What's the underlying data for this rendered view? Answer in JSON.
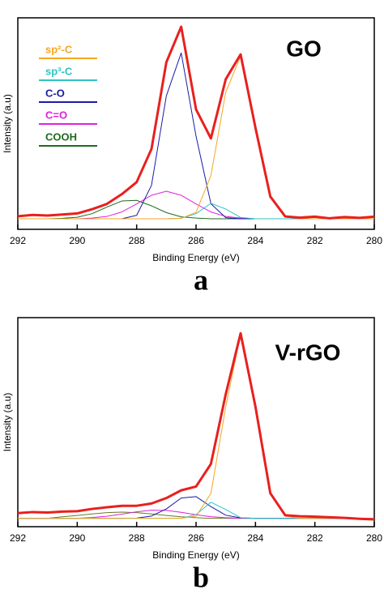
{
  "chart_data": [
    {
      "type": "line",
      "annotation": "GO",
      "panel": "a",
      "x_label": "Binding Energy (eV)",
      "y_label": "Intensity (a.u)",
      "xlim": [
        292,
        280
      ],
      "xticks": [
        292,
        290,
        288,
        286,
        284,
        282,
        280
      ],
      "ylim": [
        0,
        100
      ],
      "x": [
        292,
        291.5,
        291,
        290.5,
        290,
        289.5,
        289,
        288.5,
        288,
        287.5,
        287,
        286.5,
        286,
        285.5,
        285,
        284.5,
        284,
        283.5,
        283,
        282.5,
        282,
        281.5,
        281,
        280.5,
        280
      ],
      "series": [
        {
          "color": "#e8201e",
          "values": [
            6.2,
            6.8,
            6.5,
            7.0,
            7.5,
            9.5,
            12,
            16.6,
            22.3,
            38,
            79,
            95.8,
            56.7,
            43,
            71,
            82.7,
            48,
            15.5,
            6.1,
            5.5,
            6,
            5.2,
            5.8,
            5.4,
            6
          ]
        },
        {
          "name": "sp²-C",
          "color": "#f5a623",
          "values": [
            5,
            5,
            5,
            5,
            5,
            5,
            5,
            5,
            5,
            5,
            5,
            5.2,
            8,
            25.4,
            64.9,
            81.8,
            48,
            15.5,
            6.1,
            5,
            5,
            5,
            5,
            5,
            5
          ]
        },
        {
          "name": "sp³-C",
          "color": "#2ec4c4",
          "values": [
            5,
            5,
            5,
            5,
            5,
            5,
            5,
            5,
            5,
            5,
            5,
            5.2,
            7.4,
            12.3,
            9.6,
            5.6,
            5,
            5,
            5,
            5,
            5,
            5,
            5,
            5,
            5
          ]
        },
        {
          "name": "C-O",
          "color": "#1a1aa8",
          "values": [
            5,
            5,
            5,
            5,
            5,
            5,
            5,
            5,
            6.6,
            20.8,
            63.1,
            83.4,
            44,
            12.1,
            5.5,
            5,
            5,
            5,
            5,
            5,
            5,
            5,
            5,
            5,
            5
          ]
        },
        {
          "name": "C=O",
          "color": "#e020e0",
          "values": [
            5,
            5,
            5,
            5,
            5,
            5.3,
            6.1,
            8.2,
            12,
            16.1,
            18,
            16.1,
            12,
            8.2,
            6.1,
            5.3,
            5,
            5,
            5,
            5,
            5,
            5,
            5,
            5,
            5
          ]
        },
        {
          "name": "COOH",
          "color": "#1e6b1e",
          "values": [
            5,
            5,
            5,
            5.2,
            5.7,
            7.4,
            10.5,
            13.4,
            13.7,
            11.1,
            7.9,
            5.9,
            5.3,
            5,
            5,
            5,
            5,
            5,
            5,
            5,
            5,
            5,
            5,
            5,
            5
          ]
        }
      ]
    },
    {
      "type": "line",
      "annotation": "V-rGO",
      "panel": "b",
      "x_label": "Binding Energy (eV)",
      "y_label": "Intensity (a.u)",
      "xlim": [
        292,
        280
      ],
      "xticks": [
        292,
        290,
        288,
        286,
        284,
        282,
        280
      ],
      "ylim": [
        0,
        100
      ],
      "x": [
        292,
        291.5,
        291,
        290.5,
        290,
        289.5,
        289,
        288.5,
        288,
        287.5,
        287,
        286.5,
        286,
        285.5,
        285,
        284.5,
        284,
        283.5,
        283,
        282.5,
        282,
        281.5,
        281,
        280.5,
        280
      ],
      "series": [
        {
          "color": "#e8201e",
          "values": [
            6.5,
            7,
            6.8,
            7.2,
            7.4,
            8.5,
            9.3,
            10,
            10,
            11.1,
            13.7,
            17.4,
            19.2,
            30,
            63.4,
            92.5,
            57.4,
            16,
            5.5,
            5,
            4.8,
            4.5,
            4.2,
            3.8,
            3.5
          ]
        },
        {
          "color": "#f5a623",
          "values": [
            4,
            4,
            4,
            4,
            4,
            4,
            4,
            4,
            4,
            4,
            4,
            4,
            5,
            15.9,
            57.4,
            92,
            57.4,
            15.9,
            5,
            4,
            4,
            4,
            4,
            4,
            4
          ]
        },
        {
          "color": "#2ec4c4",
          "values": [
            4,
            4,
            4,
            4,
            4,
            4,
            4,
            4,
            4,
            4,
            4,
            4,
            5.8,
            11.7,
            8.2,
            4.3,
            4,
            4,
            4,
            4,
            4,
            4,
            4,
            4,
            4
          ]
        },
        {
          "color": "#1a1aa8",
          "values": [
            4,
            4,
            4,
            4,
            4,
            4,
            4,
            4,
            4.1,
            5.1,
            8.5,
            13.7,
            14.4,
            9.6,
            5.5,
            4.2,
            4,
            4,
            4,
            4,
            4,
            4,
            4,
            4,
            4
          ]
        },
        {
          "color": "#e020e0",
          "values": [
            4,
            4,
            4,
            4,
            4,
            4.4,
            5,
            6,
            7.1,
            7.9,
            7.8,
            6.9,
            5.7,
            4.8,
            4.3,
            4,
            4,
            4,
            4,
            4,
            4,
            4,
            4,
            4,
            4
          ]
        },
        {
          "color": "#6b7a1e",
          "values": [
            4,
            4,
            4,
            4.75,
            5.4,
            6.1,
            6.75,
            7,
            6.75,
            6.1,
            5.4,
            4.75,
            4.3,
            4,
            4,
            4,
            4,
            4,
            4,
            4,
            4,
            4,
            4,
            4,
            4
          ]
        }
      ]
    }
  ]
}
